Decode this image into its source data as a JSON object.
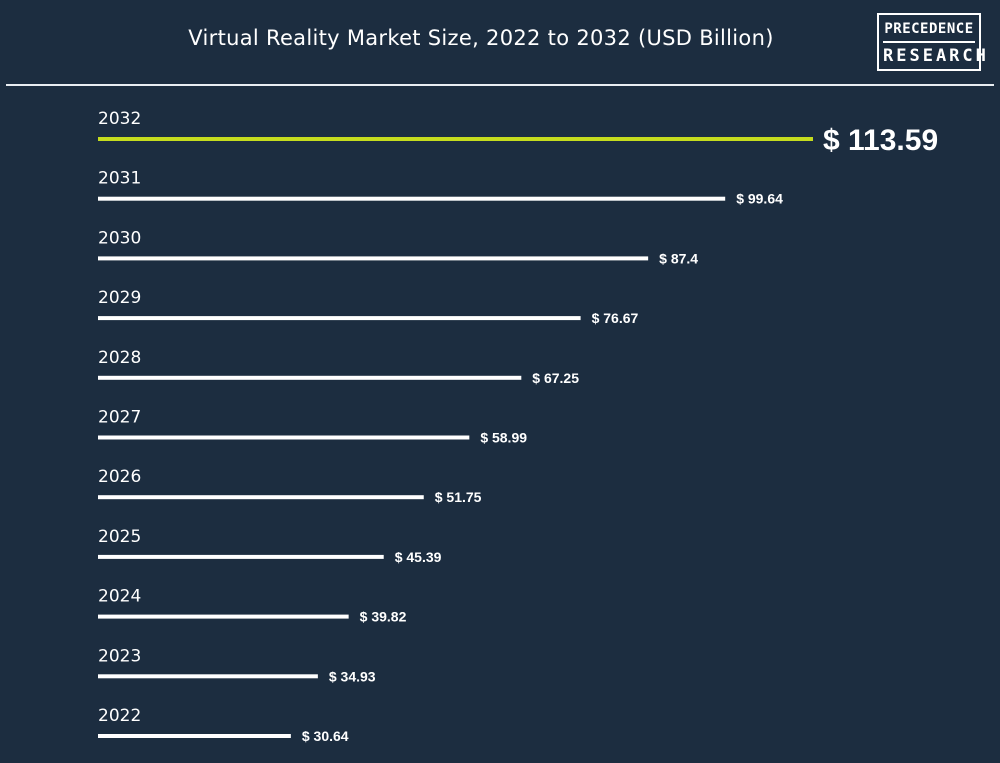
{
  "title": "Virtual Reality Market Size, 2022 to 2032 (USD Billion)",
  "logo": {
    "line1": "PRECEDENCE",
    "line2": "RESEARCH"
  },
  "colors": {
    "background": "#1c2d40",
    "bar": "#ffffff",
    "highlight_bar": "#c5dc1e",
    "text": "#ffffff"
  },
  "chart_data": {
    "type": "bar",
    "orientation": "horizontal",
    "title": "Virtual Reality Market Size, 2022 to 2032 (USD Billion)",
    "categories": [
      "2032",
      "2031",
      "2030",
      "2029",
      "2028",
      "2027",
      "2026",
      "2025",
      "2024",
      "2023",
      "2022"
    ],
    "values": [
      113.59,
      99.64,
      87.4,
      76.67,
      67.25,
      58.99,
      51.75,
      45.39,
      39.82,
      34.93,
      30.64
    ],
    "value_labels": [
      "$ 113.59",
      "$ 99.64",
      "$ 87.4",
      "$ 76.67",
      "$ 67.25",
      "$ 58.99",
      "$ 51.75",
      "$ 45.39",
      "$ 39.82",
      "$ 34.93",
      "$ 30.64"
    ],
    "highlighted_category": "2032",
    "xlabel": "",
    "ylabel": "",
    "grid": false,
    "legend": "none"
  }
}
